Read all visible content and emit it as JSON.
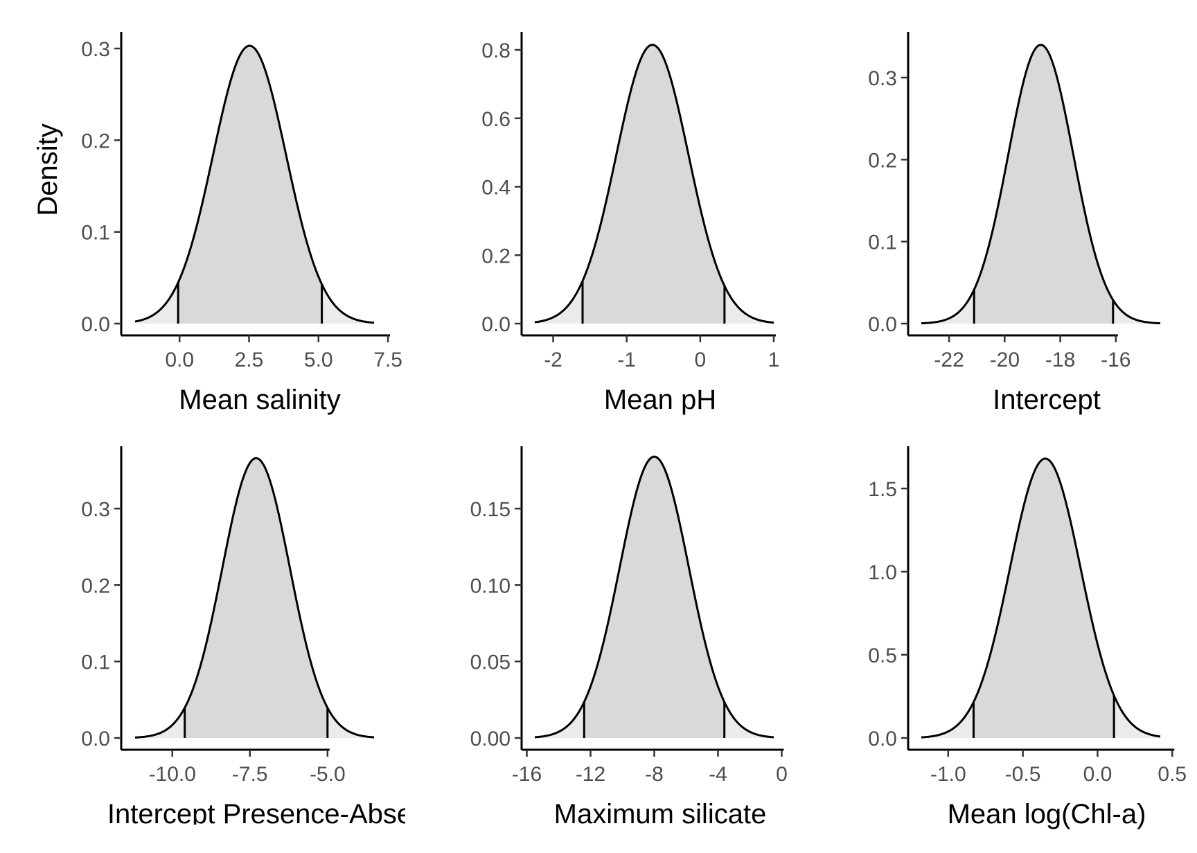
{
  "chart_data": [
    {
      "type": "area",
      "xlabel": "Mean salinity",
      "ylabel": "Density",
      "xlim": [
        -1.6,
        7.0
      ],
      "ylim": [
        0,
        0.3
      ],
      "xticks": [
        0.0,
        2.5,
        5.0,
        7.5
      ],
      "xtick_labels": [
        "0.0",
        "2.5",
        "5.0",
        "7.5"
      ],
      "yticks": [
        0.0,
        0.1,
        0.2,
        0.3
      ],
      "ytick_labels": [
        "0.0",
        "0.1",
        "0.2",
        "0.3"
      ],
      "distribution": {
        "mean": 2.52,
        "sd": 1.315,
        "peak": 0.303
      },
      "interval": [
        -0.05,
        5.12
      ],
      "fill_inner": "#d9d9d9",
      "fill_outer": "#ebebeb",
      "grid": false
    },
    {
      "type": "area",
      "xlabel": "Mean pH",
      "ylabel": "",
      "xlim": [
        -2.25,
        1.0
      ],
      "ylim": [
        0,
        0.8
      ],
      "xticks": [
        -2,
        -1,
        0,
        1
      ],
      "xtick_labels": [
        "-2",
        "-1",
        "0",
        "1"
      ],
      "yticks": [
        0.0,
        0.2,
        0.4,
        0.6,
        0.8
      ],
      "ytick_labels": [
        "0.0",
        "0.2",
        "0.4",
        "0.6",
        "0.8"
      ],
      "distribution": {
        "mean": -0.65,
        "sd": 0.49,
        "peak": 0.815
      },
      "interval": [
        -1.6,
        0.33
      ],
      "fill_inner": "#d9d9d9",
      "fill_outer": "#ebebeb",
      "grid": false
    },
    {
      "type": "area",
      "xlabel": "Intercept",
      "ylabel": "",
      "xlim": [
        -23.0,
        -14.4
      ],
      "ylim": [
        0,
        0.3
      ],
      "xticks": [
        -22,
        -20,
        -18,
        -16
      ],
      "xtick_labels": [
        "-22",
        "-20",
        "-18",
        "-16"
      ],
      "yticks": [
        0.0,
        0.1,
        0.2,
        0.3
      ],
      "ytick_labels": [
        "0.0",
        "0.1",
        "0.2",
        "0.3"
      ],
      "distribution": {
        "mean": -18.7,
        "sd": 1.17,
        "peak": 0.34
      },
      "interval": [
        -21.1,
        -16.1
      ],
      "fill_inner": "#d9d9d9",
      "fill_outer": "#ebebeb",
      "grid": false
    },
    {
      "type": "area",
      "xlabel": "Intercept Presence-Abse",
      "ylabel": "",
      "xlim": [
        -11.2,
        -3.5
      ],
      "ylim": [
        0,
        0.3
      ],
      "xticks": [
        -10.0,
        -7.5,
        -5.0
      ],
      "xtick_labels": [
        "-10.0",
        "-7.5",
        "-5.0"
      ],
      "yticks": [
        0.0,
        0.1,
        0.2,
        0.3
      ],
      "ytick_labels": [
        "0.0",
        "0.1",
        "0.2",
        "0.3"
      ],
      "distribution": {
        "mean": -7.3,
        "sd": 1.09,
        "peak": 0.366
      },
      "interval": [
        -9.6,
        -5.0
      ],
      "fill_inner": "#d9d9d9",
      "fill_outer": "#ebebeb",
      "grid": false
    },
    {
      "type": "area",
      "xlabel": "Maximum silicate",
      "ylabel": "",
      "xlim": [
        -15.5,
        -0.5
      ],
      "ylim": [
        0,
        0.15
      ],
      "xticks": [
        -16,
        -12,
        -8,
        -4,
        0
      ],
      "xtick_labels": [
        "-16",
        "-12",
        "-8",
        "-4",
        "0"
      ],
      "yticks": [
        0.0,
        0.05,
        0.1,
        0.15
      ],
      "ytick_labels": [
        "0.00",
        "0.05",
        "0.10",
        "0.15"
      ],
      "distribution": {
        "mean": -8.0,
        "sd": 2.17,
        "peak": 0.184
      },
      "interval": [
        -12.4,
        -3.6
      ],
      "fill_inner": "#d9d9d9",
      "fill_outer": "#ebebeb",
      "grid": false
    },
    {
      "type": "area",
      "xlabel": "Mean log(Chl-a)",
      "ylabel": "",
      "xlim": [
        -1.18,
        0.42
      ],
      "ylim": [
        0,
        1.5
      ],
      "xticks": [
        -1.0,
        -0.5,
        0.0,
        0.5
      ],
      "xtick_labels": [
        "-1.0",
        "-0.5",
        "0.0",
        "0.5"
      ],
      "yticks": [
        0.0,
        0.5,
        1.0,
        1.5
      ],
      "ytick_labels": [
        "0.0",
        "0.5",
        "1.0",
        "1.5"
      ],
      "distribution": {
        "mean": -0.35,
        "sd": 0.237,
        "peak": 1.68
      },
      "interval": [
        -0.83,
        0.11
      ],
      "fill_inner": "#d9d9d9",
      "fill_outer": "#ebebeb",
      "grid": false
    }
  ]
}
